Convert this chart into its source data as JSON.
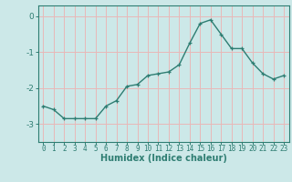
{
  "x": [
    0,
    1,
    2,
    3,
    4,
    5,
    6,
    7,
    8,
    9,
    10,
    11,
    12,
    13,
    14,
    15,
    16,
    17,
    18,
    19,
    20,
    21,
    22,
    23
  ],
  "y": [
    -2.5,
    -2.6,
    -2.85,
    -2.85,
    -2.85,
    -2.85,
    -2.5,
    -2.35,
    -1.95,
    -1.9,
    -1.65,
    -1.6,
    -1.55,
    -1.35,
    -0.75,
    -0.2,
    -0.1,
    -0.5,
    -0.9,
    -0.9,
    -1.3,
    -1.6,
    -1.75,
    -1.65
  ],
  "xlabel": "Humidex (Indice chaleur)",
  "ylim": [
    -3.5,
    0.3
  ],
  "yticks": [
    0,
    -1,
    -2,
    -3
  ],
  "ytick_labels": [
    "0",
    "-1",
    "-2",
    "-3"
  ],
  "line_color": "#2e7d72",
  "marker": "+",
  "bg_color": "#cce8e8",
  "grid_color": "#e8b8b8",
  "axis_color": "#2e7d72",
  "tick_color": "#2e7d72",
  "label_color": "#2e7d72",
  "font_size": 6.5,
  "xlabel_fontsize": 7.0
}
